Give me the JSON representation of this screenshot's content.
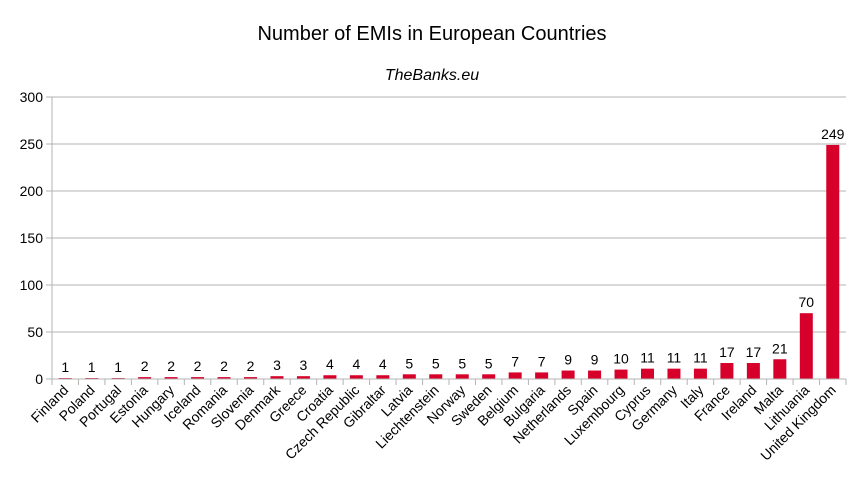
{
  "chart_data": {
    "type": "bar",
    "title": "Number of EMIs in European Countries",
    "subtitle": "TheBanks.eu",
    "xlabel": "",
    "ylabel": "",
    "ylim": [
      0,
      300
    ],
    "yticks": [
      0,
      50,
      100,
      150,
      200,
      250,
      300
    ],
    "grid": true,
    "bar_color": "#d6002a",
    "categories": [
      "Finland",
      "Poland",
      "Portugal",
      "Estonia",
      "Hungary",
      "Iceland",
      "Romania",
      "Slovenia",
      "Denmark",
      "Greece",
      "Croatia",
      "Czech Republic",
      "Gibraltar",
      "Latvia",
      "Liechtenstein",
      "Norway",
      "Sweden",
      "Belgium",
      "Bulgaria",
      "Netherlands",
      "Spain",
      "Luxembourg",
      "Cyprus",
      "Germany",
      "Italy",
      "France",
      "Ireland",
      "Malta",
      "Lithuania",
      "United Kingdom"
    ],
    "values": [
      1,
      1,
      1,
      2,
      2,
      2,
      2,
      2,
      3,
      3,
      4,
      4,
      4,
      5,
      5,
      5,
      5,
      7,
      7,
      9,
      9,
      10,
      11,
      11,
      11,
      17,
      17,
      21,
      70,
      249
    ]
  }
}
